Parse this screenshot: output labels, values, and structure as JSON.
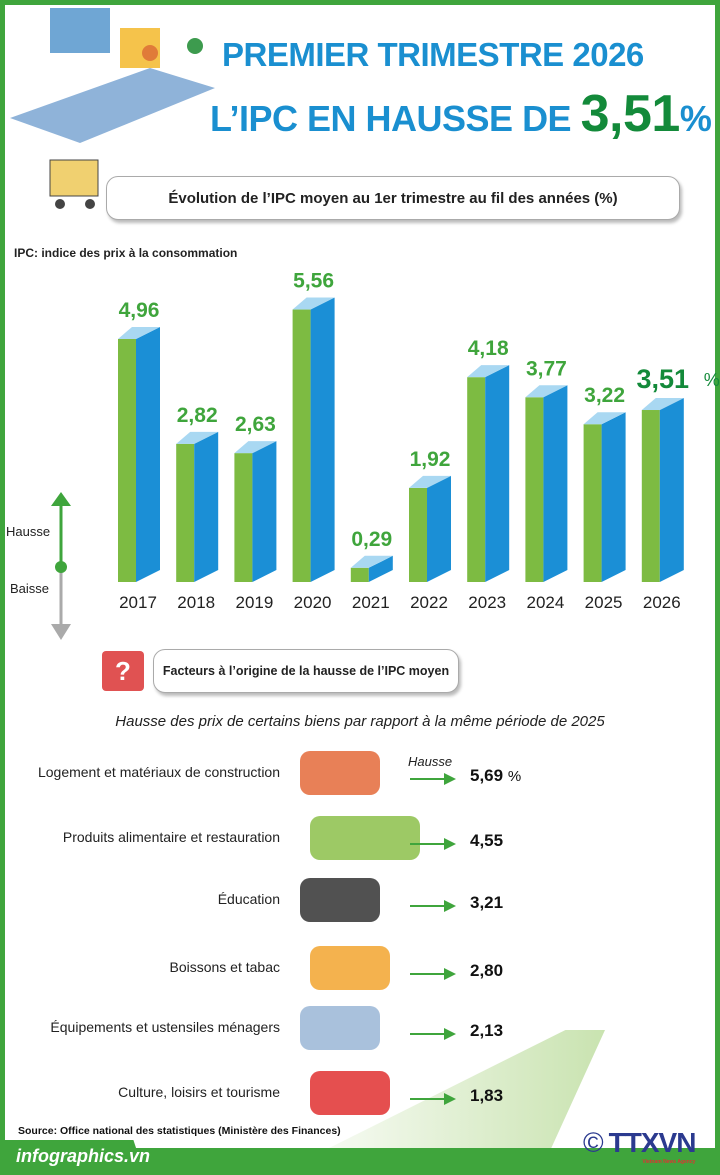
{
  "header": {
    "title_line1": "PREMIER TRIMESTRE 2026",
    "title_line2_prefix": "L’IPC EN HAUSSE DE",
    "title_value": "3,51",
    "title_unit": "%"
  },
  "chart_section": {
    "heading": "Évolution de l’IPC moyen au 1er trimestre au fil des années (%)",
    "note": "IPC: indice des prix à la consommation",
    "hausse_label": "Hausse",
    "baisse_label": "Baisse"
  },
  "chart_data": {
    "type": "bar",
    "title": "Évolution de l’IPC moyen au 1er trimestre au fil des années (%)",
    "categories": [
      "2017",
      "2018",
      "2019",
      "2020",
      "2021",
      "2022",
      "2023",
      "2024",
      "2025",
      "2026"
    ],
    "values": [
      4.96,
      2.82,
      2.63,
      5.56,
      0.29,
      1.92,
      4.18,
      3.77,
      3.22,
      3.51
    ],
    "labels": [
      "4,96",
      "2,82",
      "2,63",
      "5,56",
      "0,29",
      "1,92",
      "4,18",
      "3,77",
      "3,22",
      "3,51"
    ],
    "highlight_unit": "%",
    "colors": {
      "front": "#7dbb42",
      "side": "#1b8fd6",
      "top": "#a9d8f2",
      "label": "#3fa53c",
      "highlight_label": "#138a3a"
    }
  },
  "factors": {
    "heading": "Facteurs à l’origine de la hausse de l’IPC moyen",
    "subtitle": "Hausse des prix de certains biens par rapport à la même période de 2025",
    "arrow_label": "Hausse",
    "unit": "%",
    "items": [
      {
        "label": "Logement et matériaux de construction",
        "value": "5,69",
        "icon": "bricks-icon"
      },
      {
        "label": "Produits alimentaire et restauration",
        "value": "4,55",
        "icon": "food-icon"
      },
      {
        "label": "Éducation",
        "value": "3,21",
        "icon": "graduation-cap-icon"
      },
      {
        "label": "Boissons et tabac",
        "value": "2,80",
        "icon": "drinks-icon"
      },
      {
        "label": "Équipements et ustensiles ménagers",
        "value": "2,13",
        "icon": "appliances-icon"
      },
      {
        "label": "Culture, loisirs et tourisme",
        "value": "1,83",
        "icon": "popcorn-icon"
      }
    ]
  },
  "footer": {
    "source": "Source: Office national des statistiques (Ministère des Finances)",
    "site": "infographics.vn",
    "logo": "TTXVN",
    "logo_sub": "Vietnam News Agency",
    "copyright": "©"
  }
}
